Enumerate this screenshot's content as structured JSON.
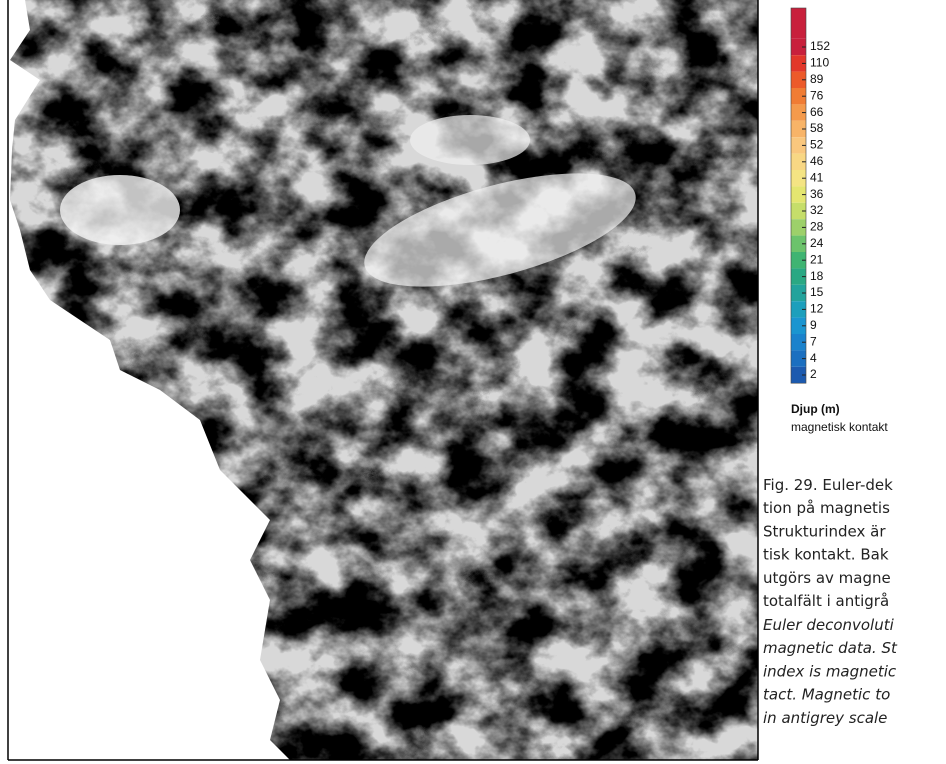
{
  "legend": {
    "title": "Djup (m)",
    "subtitle": "magnetisk kontakt",
    "classes": [
      {
        "label": 152,
        "color": "#c8203c"
      },
      {
        "label": 110,
        "color": "#e2372a"
      },
      {
        "label": 89,
        "color": "#ec5a2a"
      },
      {
        "label": 76,
        "color": "#f07c34"
      },
      {
        "label": 66,
        "color": "#f49a4c"
      },
      {
        "label": 58,
        "color": "#f8b468"
      },
      {
        "label": 52,
        "color": "#f9c77e"
      },
      {
        "label": 46,
        "color": "#f8d784"
      },
      {
        "label": 41,
        "color": "#f4e483"
      },
      {
        "label": 36,
        "color": "#e4e670"
      },
      {
        "label": 32,
        "color": "#c6de6a"
      },
      {
        "label": 28,
        "color": "#9dd06a"
      },
      {
        "label": 24,
        "color": "#6cc36c"
      },
      {
        "label": 21,
        "color": "#3fb472"
      },
      {
        "label": 18,
        "color": "#2aa883"
      },
      {
        "label": 15,
        "color": "#22a39c"
      },
      {
        "label": 12,
        "color": "#1c9fbc"
      },
      {
        "label": 9,
        "color": "#1a95d0"
      },
      {
        "label": 7,
        "color": "#1a82cc"
      },
      {
        "label": 4,
        "color": "#1b6fc0"
      },
      {
        "label": 2,
        "color": "#1c5aaf"
      }
    ]
  },
  "caption": {
    "swedish": [
      "Fig. 29. Euler-dek",
      "tion på magnetis",
      "Strukturindex är",
      "tisk kontakt. Bak",
      "utgörs av magne",
      "totalfält i antigrå"
    ],
    "english": [
      "Euler deconvoluti",
      "magnetic data. St",
      "index is magnetic",
      "tact. Magnetic to",
      "in antigrey scale"
    ]
  }
}
